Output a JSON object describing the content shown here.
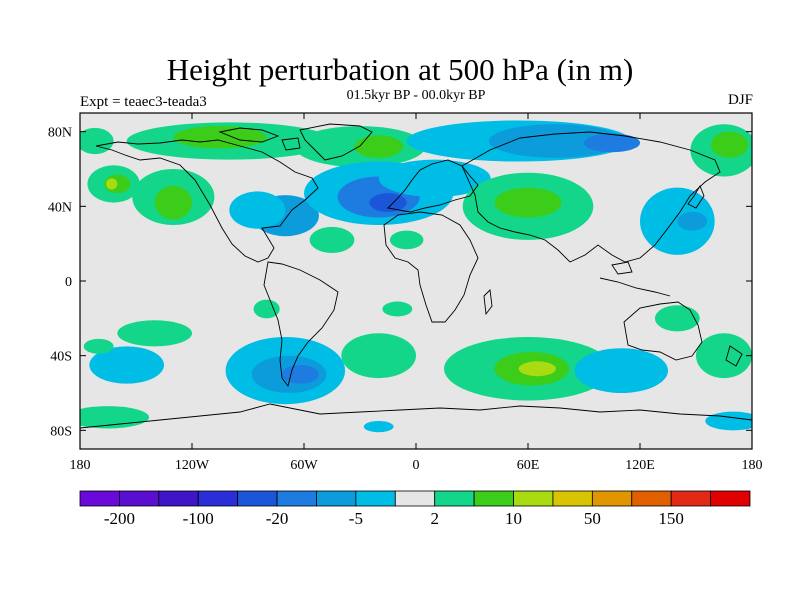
{
  "title": "Height perturbation at 500 hPa (in m)",
  "subtitle": "01.5kyr BP - 00.0kyr BP",
  "experiment": "Expt = teaec3-teada3",
  "season": "DJF",
  "map": {
    "lon_range": [
      -180,
      180
    ],
    "lat_range": [
      -90,
      90
    ],
    "x_ticks": [
      {
        "lon": -180,
        "label": "180"
      },
      {
        "lon": -120,
        "label": "120W"
      },
      {
        "lon": -60,
        "label": "60W"
      },
      {
        "lon": 0,
        "label": "0"
      },
      {
        "lon": 60,
        "label": "60E"
      },
      {
        "lon": 120,
        "label": "120E"
      },
      {
        "lon": 180,
        "label": "180"
      }
    ],
    "y_ticks": [
      {
        "lat": 80,
        "label": "80N"
      },
      {
        "lat": 40,
        "label": "40N"
      },
      {
        "lat": 0,
        "label": "0"
      },
      {
        "lat": -40,
        "label": "40S"
      },
      {
        "lat": -80,
        "label": "80S"
      }
    ],
    "background_color": "#e6e6e6"
  },
  "colorbar": {
    "colors": [
      "#6a0ad8",
      "#5a0fd0",
      "#3e16c8",
      "#2a2ed8",
      "#1b55d8",
      "#1e7be0",
      "#0c9cdc",
      "#00bde6",
      "#e6e6e6",
      "#14d68a",
      "#3ccc1a",
      "#a8dc10",
      "#d8c400",
      "#e09600",
      "#e06000",
      "#e02a16",
      "#e00000"
    ],
    "labels": [
      {
        "boundary": 1,
        "text": "-200"
      },
      {
        "boundary": 3,
        "text": "-100"
      },
      {
        "boundary": 5,
        "text": "-20"
      },
      {
        "boundary": 7,
        "text": "-5"
      },
      {
        "boundary": 9,
        "text": "2"
      },
      {
        "boundary": 11,
        "text": "10"
      },
      {
        "boundary": 13,
        "text": "50"
      },
      {
        "boundary": 15,
        "text": "150"
      }
    ]
  },
  "anomaly_regions": [
    {
      "lon": -172,
      "lat": 75,
      "rx": 10,
      "ry": 7,
      "color": "#14d68a"
    },
    {
      "lon": -162,
      "lat": 52,
      "rx": 14,
      "ry": 10,
      "color": "#14d68a"
    },
    {
      "lon": -160,
      "lat": 52,
      "rx": 7,
      "ry": 5,
      "color": "#3ccc1a"
    },
    {
      "lon": -163,
      "lat": 52,
      "rx": 3,
      "ry": 3,
      "color": "#a8dc10"
    },
    {
      "lon": -130,
      "lat": 45,
      "rx": 22,
      "ry": 15,
      "color": "#14d68a"
    },
    {
      "lon": -130,
      "lat": 42,
      "rx": 10,
      "ry": 9,
      "color": "#3ccc1a"
    },
    {
      "lon": -100,
      "lat": 75,
      "rx": 55,
      "ry": 10,
      "color": "#14d68a"
    },
    {
      "lon": -105,
      "lat": 77,
      "rx": 25,
      "ry": 6,
      "color": "#3ccc1a"
    },
    {
      "lon": -30,
      "lat": 72,
      "rx": 35,
      "ry": 11,
      "color": "#14d68a"
    },
    {
      "lon": -20,
      "lat": 72,
      "rx": 13,
      "ry": 6,
      "color": "#3ccc1a"
    },
    {
      "lon": -70,
      "lat": 35,
      "rx": 18,
      "ry": 11,
      "color": "#0c9cdc"
    },
    {
      "lon": -85,
      "lat": 38,
      "rx": 15,
      "ry": 10,
      "color": "#00bde6"
    },
    {
      "lon": -20,
      "lat": 47,
      "rx": 40,
      "ry": 17,
      "color": "#00bde6"
    },
    {
      "lon": -20,
      "lat": 45,
      "rx": 22,
      "ry": 11,
      "color": "#1e7be0"
    },
    {
      "lon": -15,
      "lat": 42,
      "rx": 10,
      "ry": 5,
      "color": "#1b55d8"
    },
    {
      "lon": 55,
      "lat": 75,
      "rx": 60,
      "ry": 11,
      "color": "#00bde6"
    },
    {
      "lon": 75,
      "lat": 75,
      "rx": 36,
      "ry": 9,
      "color": "#0c9cdc"
    },
    {
      "lon": 105,
      "lat": 74,
      "rx": 15,
      "ry": 5,
      "color": "#1e7be0"
    },
    {
      "lon": 10,
      "lat": 55,
      "rx": 30,
      "ry": 10,
      "color": "#00bde6"
    },
    {
      "lon": 60,
      "lat": 40,
      "rx": 35,
      "ry": 18,
      "color": "#14d68a"
    },
    {
      "lon": 60,
      "lat": 42,
      "rx": 18,
      "ry": 8,
      "color": "#3ccc1a"
    },
    {
      "lon": 140,
      "lat": 32,
      "rx": 20,
      "ry": 18,
      "color": "#00bde6"
    },
    {
      "lon": 148,
      "lat": 32,
      "rx": 8,
      "ry": 5,
      "color": "#0c9cdc"
    },
    {
      "lon": 165,
      "lat": 70,
      "rx": 18,
      "ry": 14,
      "color": "#14d68a"
    },
    {
      "lon": 168,
      "lat": 73,
      "rx": 10,
      "ry": 7,
      "color": "#3ccc1a"
    },
    {
      "lon": -45,
      "lat": 22,
      "rx": 12,
      "ry": 7,
      "color": "#14d68a"
    },
    {
      "lon": -5,
      "lat": 22,
      "rx": 9,
      "ry": 5,
      "color": "#14d68a"
    },
    {
      "lon": -155,
      "lat": -45,
      "rx": 20,
      "ry": 10,
      "color": "#00bde6"
    },
    {
      "lon": -140,
      "lat": -28,
      "rx": 20,
      "ry": 7,
      "color": "#14d68a"
    },
    {
      "lon": -170,
      "lat": -35,
      "rx": 8,
      "ry": 4,
      "color": "#14d68a"
    },
    {
      "lon": -70,
      "lat": -48,
      "rx": 32,
      "ry": 18,
      "color": "#00bde6"
    },
    {
      "lon": -68,
      "lat": -50,
      "rx": 20,
      "ry": 10,
      "color": "#0c9cdc"
    },
    {
      "lon": -62,
      "lat": -50,
      "rx": 10,
      "ry": 5,
      "color": "#1e7be0"
    },
    {
      "lon": -20,
      "lat": -40,
      "rx": 20,
      "ry": 12,
      "color": "#14d68a"
    },
    {
      "lon": -80,
      "lat": -15,
      "rx": 7,
      "ry": 5,
      "color": "#14d68a"
    },
    {
      "lon": -10,
      "lat": -15,
      "rx": 8,
      "ry": 4,
      "color": "#14d68a"
    },
    {
      "lon": 60,
      "lat": -47,
      "rx": 45,
      "ry": 17,
      "color": "#14d68a"
    },
    {
      "lon": 62,
      "lat": -47,
      "rx": 20,
      "ry": 9,
      "color": "#3ccc1a"
    },
    {
      "lon": 65,
      "lat": -47,
      "rx": 10,
      "ry": 4,
      "color": "#a8dc10"
    },
    {
      "lon": 110,
      "lat": -48,
      "rx": 25,
      "ry": 12,
      "color": "#00bde6"
    },
    {
      "lon": 165,
      "lat": -40,
      "rx": 15,
      "ry": 12,
      "color": "#14d68a"
    },
    {
      "lon": 140,
      "lat": -20,
      "rx": 12,
      "ry": 7,
      "color": "#14d68a"
    },
    {
      "lon": -20,
      "lat": -78,
      "rx": 8,
      "ry": 3,
      "color": "#00bde6"
    },
    {
      "lon": 170,
      "lat": -75,
      "rx": 15,
      "ry": 5,
      "color": "#00bde6"
    },
    {
      "lon": -165,
      "lat": -73,
      "rx": 22,
      "ry": 6,
      "color": "#14d68a"
    }
  ]
}
